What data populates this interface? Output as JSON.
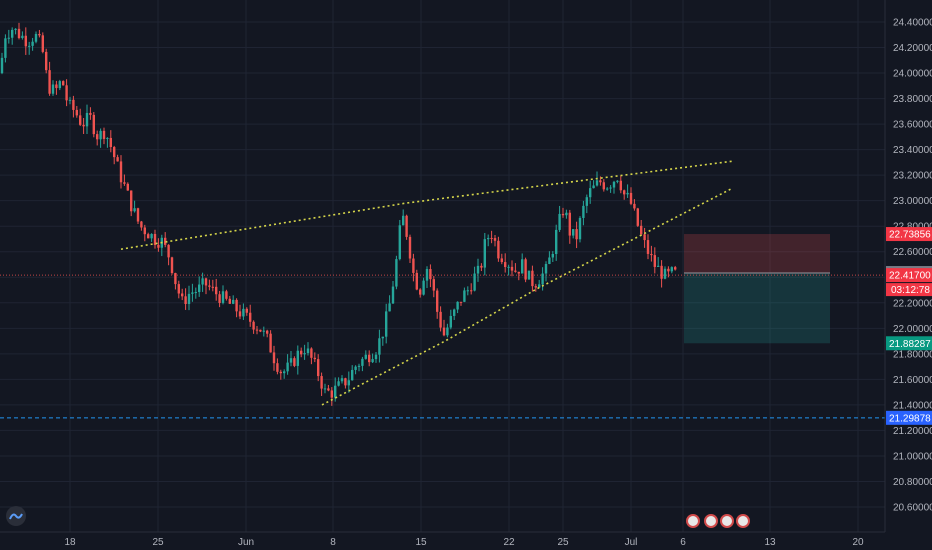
{
  "colors": {
    "background": "#131722",
    "grid": "#1f2433",
    "up": "#26a69a",
    "down": "#ef5350",
    "trendline": "#d6d64a",
    "axis_text": "#b2b5be",
    "stop_zone": "#ef5350",
    "target_zone": "#26a69a",
    "support_line": "#2196f3"
  },
  "chart_data": {
    "type": "candlestick",
    "y_axis": {
      "ticks": [
        "24.40000",
        "24.20000",
        "24.00000",
        "23.80000",
        "23.60000",
        "23.40000",
        "23.20000",
        "23.00000",
        "22.80000",
        "22.60000",
        "22.40000",
        "22.20000",
        "22.00000",
        "21.80000",
        "21.60000",
        "21.40000",
        "21.20000",
        "21.00000",
        "20.80000",
        "20.60000"
      ],
      "range": [
        20.55,
        24.55
      ]
    },
    "x_axis": {
      "ticks": [
        "18",
        "25",
        "Jun",
        "8",
        "15",
        "22",
        "25",
        "Jul",
        "6",
        "13",
        "20"
      ]
    },
    "price_tags": {
      "stop": "22.73856",
      "entry": "22.43319",
      "current_price": "22.41700",
      "countdown": "03:12:78",
      "target": "21.88287",
      "support": "21.29878"
    },
    "series_path": [
      [
        0,
        24.0
      ],
      [
        5,
        24.3
      ],
      [
        12,
        24.35
      ],
      [
        20,
        24.3
      ],
      [
        28,
        24.25
      ],
      [
        35,
        24.3
      ],
      [
        42,
        24.2
      ],
      [
        48,
        23.9
      ],
      [
        55,
        23.85
      ],
      [
        62,
        23.95
      ],
      [
        68,
        23.75
      ],
      [
        75,
        23.7
      ],
      [
        82,
        23.6
      ],
      [
        90,
        23.65
      ],
      [
        98,
        23.5
      ],
      [
        105,
        23.55
      ],
      [
        112,
        23.4
      ],
      [
        118,
        23.25
      ],
      [
        125,
        23.1
      ],
      [
        132,
        22.95
      ],
      [
        140,
        22.8
      ],
      [
        148,
        22.75
      ],
      [
        155,
        22.7
      ],
      [
        162,
        22.68
      ],
      [
        170,
        22.55
      ],
      [
        176,
        22.35
      ],
      [
        182,
        22.2
      ],
      [
        190,
        22.28
      ],
      [
        198,
        22.3
      ],
      [
        205,
        22.35
      ],
      [
        212,
        22.3
      ],
      [
        220,
        22.25
      ],
      [
        228,
        22.2
      ],
      [
        236,
        22.15
      ],
      [
        244,
        22.1
      ],
      [
        252,
        22.05
      ],
      [
        260,
        22.0
      ],
      [
        268,
        21.9
      ],
      [
        275,
        21.75
      ],
      [
        282,
        21.65
      ],
      [
        290,
        21.7
      ],
      [
        298,
        21.8
      ],
      [
        305,
        21.85
      ],
      [
        312,
        21.75
      ],
      [
        318,
        21.65
      ],
      [
        325,
        21.5
      ],
      [
        332,
        21.5
      ],
      [
        340,
        21.55
      ],
      [
        348,
        21.6
      ],
      [
        355,
        21.7
      ],
      [
        362,
        21.75
      ],
      [
        370,
        21.8
      ],
      [
        377,
        21.85
      ],
      [
        384,
        22.0
      ],
      [
        390,
        22.2
      ],
      [
        396,
        22.5
      ],
      [
        402,
        22.9
      ],
      [
        408,
        22.7
      ],
      [
        414,
        22.4
      ],
      [
        420,
        22.3
      ],
      [
        426,
        22.5
      ],
      [
        432,
        22.35
      ],
      [
        438,
        22.1
      ],
      [
        444,
        21.95
      ],
      [
        450,
        22.05
      ],
      [
        456,
        22.15
      ],
      [
        462,
        22.25
      ],
      [
        468,
        22.3
      ],
      [
        474,
        22.4
      ],
      [
        480,
        22.45
      ],
      [
        486,
        22.7
      ],
      [
        492,
        22.75
      ],
      [
        498,
        22.6
      ],
      [
        504,
        22.55
      ],
      [
        510,
        22.5
      ],
      [
        516,
        22.45
      ],
      [
        522,
        22.5
      ],
      [
        528,
        22.4
      ],
      [
        534,
        22.35
      ],
      [
        540,
        22.4
      ],
      [
        546,
        22.45
      ],
      [
        552,
        22.6
      ],
      [
        558,
        22.8
      ],
      [
        564,
        22.95
      ],
      [
        570,
        22.75
      ],
      [
        576,
        22.7
      ],
      [
        582,
        22.9
      ],
      [
        588,
        23.05
      ],
      [
        594,
        23.1
      ],
      [
        600,
        23.15
      ],
      [
        606,
        23.12
      ],
      [
        612,
        23.15
      ],
      [
        618,
        23.2
      ],
      [
        624,
        23.05
      ],
      [
        630,
        23.0
      ],
      [
        636,
        22.85
      ],
      [
        642,
        22.7
      ],
      [
        648,
        22.6
      ],
      [
        654,
        22.5
      ],
      [
        660,
        22.45
      ],
      [
        666,
        22.4
      ],
      [
        672,
        22.43
      ],
      [
        678,
        22.42
      ]
    ],
    "trendlines": [
      {
        "name": "upper-wedge",
        "points": [
          [
            121,
            22.62
          ],
          [
            405,
            22.98
          ],
          [
            733,
            23.31
          ]
        ]
      },
      {
        "name": "lower-wedge",
        "points": [
          [
            322,
            21.4
          ],
          [
            445,
            21.9
          ],
          [
            537,
            22.31
          ],
          [
            733,
            23.1
          ]
        ]
      }
    ],
    "position": {
      "x_start": 684,
      "x_end": 830,
      "stop": 22.73856,
      "entry": 22.43319,
      "target": 21.88287
    },
    "current_price_line": 22.417,
    "support_line": 21.29878
  }
}
